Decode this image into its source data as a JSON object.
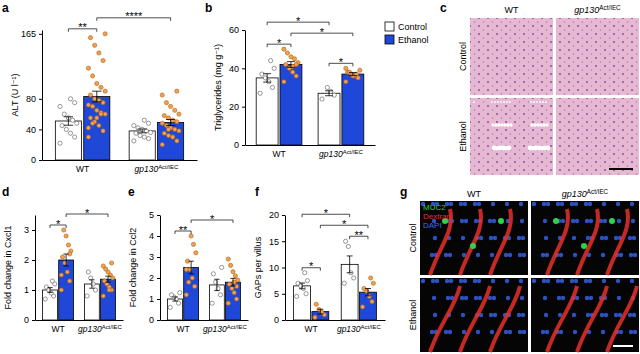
{
  "chart_data": [
    {
      "type": "bar",
      "title": "a",
      "ylabel": "ALT (U l⁻¹)",
      "categories": [
        "WT",
        "gp130Act/IEC"
      ],
      "ylim": [
        0,
        170
      ],
      "yticks": [
        0,
        40,
        80,
        165
      ],
      "series": [
        {
          "name": "Control",
          "color": "#ffffff",
          "values": [
            51,
            38
          ],
          "errors": [
            5.5,
            2.5
          ],
          "points": [
            [
              22,
              30,
              35,
              40,
              45,
              48,
              52,
              55,
              60,
              70,
              75,
              80
            ],
            [
              25,
              28,
              30,
              32,
              35,
              36,
              38,
              40,
              42,
              45,
              48,
              52
            ]
          ]
        },
        {
          "name": "Ethanol",
          "color": "#1f47d8",
          "values": [
            83,
            49
          ],
          "errors": [
            7,
            4
          ],
          "points": [
            [
              30,
              38,
              45,
              50,
              55,
              60,
              62,
              65,
              70,
              72,
              75,
              78,
              80,
              85,
              90,
              95,
              100,
              110,
              120,
              130,
              140,
              150,
              160,
              165,
              60,
              55,
              48,
              42
            ],
            [
              20,
              25,
              30,
              32,
              35,
              38,
              40,
              42,
              45,
              48,
              50,
              52,
              55,
              58,
              60,
              65,
              70,
              75,
              85,
              90,
              30,
              40
            ]
          ]
        }
      ],
      "annotations": [
        {
          "text": "**",
          "from": [
            0,
            0
          ],
          "to": [
            0,
            1
          ]
        },
        {
          "text": "****",
          "from": [
            0,
            1
          ],
          "to": [
            1,
            1
          ]
        }
      ]
    },
    {
      "type": "bar",
      "title": "b",
      "ylabel": "Triglycerides (mg g⁻¹)",
      "categories": [
        "WT",
        "gp130Act/IEC"
      ],
      "ylim": [
        0,
        60
      ],
      "yticks": [
        0,
        20,
        40,
        60
      ],
      "legend": "right",
      "series": [
        {
          "name": "Control",
          "color": "#ffffff",
          "values": [
            35,
            27
          ],
          "errors": [
            2.2,
            1.3
          ],
          "points": [
            [
              27,
              30,
              33,
              35,
              37,
              40,
              44
            ],
            [
              24,
              26,
              28,
              30
            ]
          ]
        },
        {
          "name": "Ethanol",
          "color": "#1f47d8",
          "values": [
            42,
            37
          ],
          "errors": [
            1.5,
            0.8
          ],
          "points": [
            [
              33,
              36,
              38,
              40,
              42,
              43,
              45,
              46,
              48,
              50,
              42,
              41
            ],
            [
              33,
              35,
              36,
              37,
              38,
              39,
              37,
              36,
              38,
              40
            ]
          ]
        }
      ],
      "annotations": [
        {
          "text": "*",
          "from": [
            0,
            0
          ],
          "to": [
            0,
            1
          ]
        },
        {
          "text": "*",
          "from": [
            1,
            0
          ],
          "to": [
            1,
            1
          ]
        },
        {
          "text": "*",
          "from": [
            0,
            1
          ],
          "to": [
            1,
            1
          ]
        },
        {
          "text": "*",
          "from": [
            0,
            0
          ],
          "to": [
            1,
            0
          ]
        }
      ]
    },
    {
      "type": "bar",
      "title": "d",
      "ylabel": "Fold change in Cxcl1",
      "categories": [
        "WT",
        "gp130Act/IEC"
      ],
      "ylim": [
        0,
        3.5
      ],
      "yticks": [
        0,
        1,
        2,
        3
      ],
      "series": [
        {
          "name": "Control",
          "color": "#ffffff",
          "values": [
            1.0,
            1.2
          ],
          "errors": [
            0.08,
            0.14
          ],
          "points": [
            [
              0.7,
              0.8,
              0.9,
              1.0,
              1.1,
              1.2,
              1.3
            ],
            [
              0.8,
              1.0,
              1.2,
              1.4,
              1.6
            ]
          ]
        },
        {
          "name": "Ethanol",
          "color": "#1f47d8",
          "values": [
            2.0,
            1.36
          ],
          "errors": [
            0.2,
            0.1
          ],
          "points": [
            [
              1.0,
              1.3,
              1.6,
              1.9,
              2.1,
              2.3,
              2.5,
              2.8,
              3.0,
              1.5,
              2.2
            ],
            [
              0.8,
              1.0,
              1.1,
              1.2,
              1.3,
              1.4,
              1.5,
              1.6,
              1.7,
              1.8,
              1.9,
              1.0
            ]
          ]
        }
      ],
      "annotations": [
        {
          "text": "*",
          "from": [
            0,
            0
          ],
          "to": [
            0,
            1
          ]
        },
        {
          "text": "*",
          "from": [
            0,
            1
          ],
          "to": [
            1,
            1
          ]
        }
      ]
    },
    {
      "type": "bar",
      "title": "e",
      "ylabel": "Fold change in Ccl2",
      "categories": [
        "WT",
        "gp130Act/IEC"
      ],
      "ylim": [
        0,
        5
      ],
      "yticks": [
        0,
        1,
        2,
        3,
        4,
        5
      ],
      "series": [
        {
          "name": "Control",
          "color": "#ffffff",
          "values": [
            1.0,
            1.67
          ],
          "errors": [
            0.1,
            0.27
          ],
          "points": [
            [
              0.6,
              0.8,
              1.0,
              1.1,
              1.2,
              1.3
            ],
            [
              0.8,
              1.2,
              1.5,
              1.8,
              2.2,
              2.5
            ]
          ]
        },
        {
          "name": "Ethanol",
          "color": "#1f47d8",
          "values": [
            2.5,
            1.8
          ],
          "errors": [
            0.3,
            0.18
          ],
          "points": [
            [
              1.2,
              1.6,
              2.0,
              2.4,
              2.8,
              3.2,
              3.6,
              4.0,
              1.8,
              2.4
            ],
            [
              0.8,
              1.0,
              1.3,
              1.5,
              1.7,
              1.9,
              2.1,
              2.3,
              2.6,
              2.9,
              1.6,
              1.8
            ]
          ]
        }
      ],
      "annotations": [
        {
          "text": "**",
          "from": [
            0,
            0
          ],
          "to": [
            0,
            1
          ]
        },
        {
          "text": "*",
          "from": [
            0,
            1
          ],
          "to": [
            1,
            1
          ]
        }
      ]
    },
    {
      "type": "bar",
      "title": "f",
      "ylabel": "GAPs per villus",
      "categories": [
        "WT",
        "gp130Act/IEC"
      ],
      "ylim": [
        0,
        20
      ],
      "yticks": [
        0,
        5,
        10,
        15,
        20
      ],
      "series": [
        {
          "name": "Control",
          "color": "#ffffff",
          "values": [
            6.5,
            10.6
          ],
          "errors": [
            0.55,
            1.6
          ],
          "points": [
            [
              4.5,
              5,
              6,
              6.5,
              7,
              7.5,
              9
            ],
            [
              7,
              8,
              9,
              14,
              15
            ]
          ]
        },
        {
          "name": "Ethanol",
          "color": "#1f47d8",
          "values": [
            1.6,
            5.3
          ],
          "errors": [
            0.45,
            0.7
          ],
          "points": [
            [
              0.5,
              1,
              1.5,
              2,
              3
            ],
            [
              2.5,
              3.5,
              4.5,
              5.5,
              6,
              7,
              8
            ]
          ]
        }
      ],
      "annotations": [
        {
          "text": "*",
          "from": [
            0,
            0
          ],
          "to": [
            0,
            1
          ]
        },
        {
          "text": "**",
          "from": [
            1,
            0
          ],
          "to": [
            1,
            1
          ]
        },
        {
          "text": "*",
          "from": [
            0,
            1
          ],
          "to": [
            1,
            1
          ]
        },
        {
          "text": "*",
          "from": [
            0,
            0
          ],
          "to": [
            1,
            0
          ]
        }
      ]
    }
  ],
  "images": [
    {
      "label": "c",
      "columns": [
        "WT",
        "gp130Act/IEC"
      ],
      "rows": [
        "Control",
        "Ethanol"
      ]
    },
    {
      "label": "g",
      "columns": [
        "WT",
        "gp130Act/IEC"
      ],
      "rows": [
        "Control",
        "Ethanol"
      ],
      "channels": [
        {
          "name": "MUC2",
          "color": "#2fd24a"
        },
        {
          "name": "Dextran",
          "color": "#e8302a"
        },
        {
          "name": "DAPI",
          "color": "#3b6cff"
        }
      ]
    }
  ]
}
